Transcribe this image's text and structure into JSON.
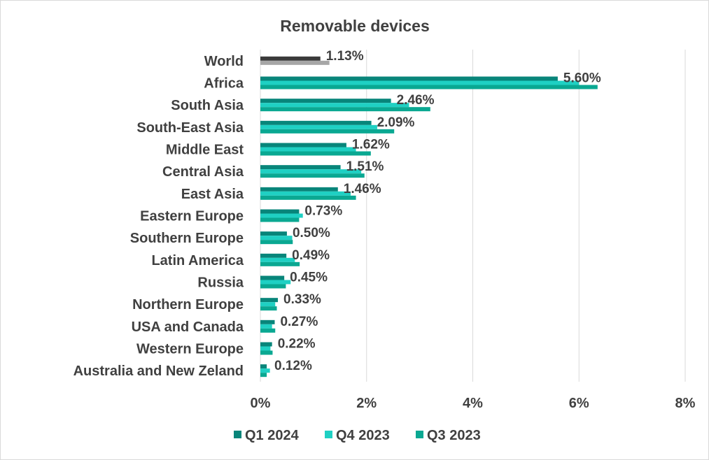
{
  "chart_data": {
    "type": "bar",
    "orientation": "horizontal",
    "title": "Removable devices",
    "xlabel": "",
    "ylabel": "",
    "xlim": [
      0,
      8
    ],
    "x_tick_labels": [
      "0%",
      "2%",
      "4%",
      "6%",
      "8%"
    ],
    "grid": true,
    "legend_position": "bottom",
    "categories": [
      "World",
      "Africa",
      "South Asia",
      "South-East Asia",
      "Middle East",
      "Central Asia",
      "East Asia",
      "Eastern Europe",
      "Southern Europe",
      "Latin America",
      "Russia",
      "Northern Europe",
      "USA and Canada",
      "Western Europe",
      "Australia and New Zeland"
    ],
    "series": [
      {
        "name": "Q1 2024",
        "color": "#08857a",
        "values": [
          1.13,
          5.6,
          2.46,
          2.09,
          1.62,
          1.51,
          1.46,
          0.73,
          0.5,
          0.49,
          0.45,
          0.33,
          0.27,
          0.22,
          0.12
        ]
      },
      {
        "name": "Q4 2023",
        "color": "#1fd0c3",
        "values": [
          null,
          6.0,
          2.8,
          2.2,
          1.8,
          1.9,
          1.7,
          0.8,
          0.6,
          0.65,
          0.57,
          0.28,
          0.22,
          0.19,
          0.18
        ]
      },
      {
        "name": "Q3 2023",
        "color": "#0aa892",
        "values": [
          1.3,
          6.35,
          3.2,
          2.52,
          2.08,
          1.96,
          1.8,
          0.73,
          0.61,
          0.74,
          0.48,
          0.31,
          0.28,
          0.23,
          0.12
        ]
      }
    ],
    "world_colors": [
      "#3a3a3a",
      "#a6a6a6"
    ],
    "data_labels": [
      "1.13%",
      "5.60%",
      "2.46%",
      "2.09%",
      "1.62%",
      "1.51%",
      "1.46%",
      "0.73%",
      "0.50%",
      "0.49%",
      "0.45%",
      "0.33%",
      "0.27%",
      "0.22%",
      "0.12%"
    ]
  }
}
